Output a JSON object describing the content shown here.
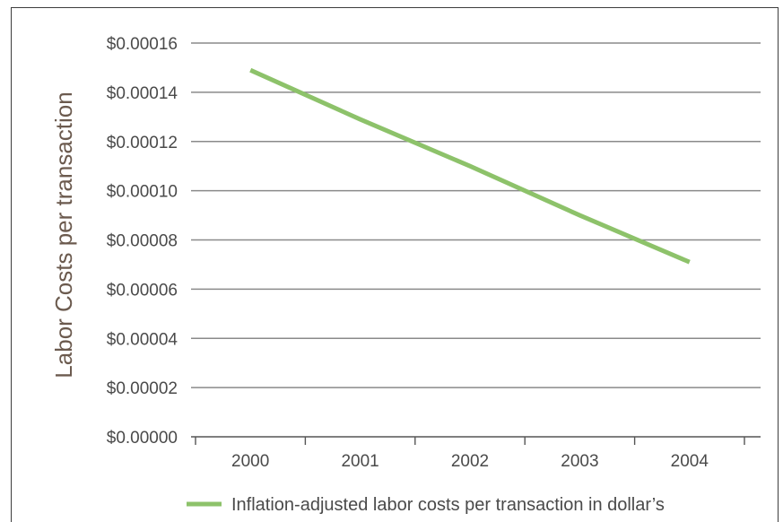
{
  "chart_data": {
    "type": "line",
    "title": "",
    "xlabel": "",
    "ylabel": "Labor Costs per transaction",
    "categories": [
      "2000",
      "2001",
      "2002",
      "2003",
      "2004"
    ],
    "ylim": [
      0,
      0.00016
    ],
    "yticks": [
      0,
      2e-05,
      4e-05,
      6e-05,
      8e-05,
      0.0001,
      0.00012,
      0.00014,
      0.00016
    ],
    "ytick_labels": [
      "$0.00000",
      "$0.00002",
      "$0.00004",
      "$0.00006",
      "$0.00008",
      "$0.00010",
      "$0.00012",
      "$0.00014",
      "$0.00016"
    ],
    "grid": true,
    "legend_position": "bottom",
    "series": [
      {
        "name": "Inflation-adjusted labor costs per transaction in dollar’s",
        "color": "#8dc26a",
        "values": [
          0.000149,
          0.000129,
          0.00011,
          9e-05,
          7.1e-05
        ]
      }
    ]
  }
}
